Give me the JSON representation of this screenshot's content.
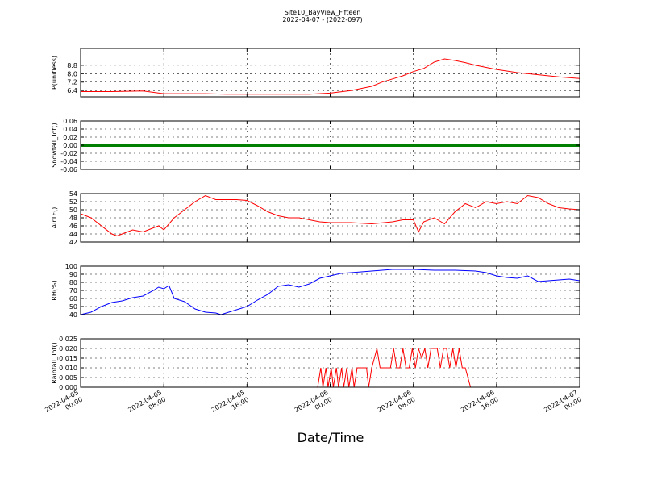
{
  "chart_title": "Site10_BayView_Fifteen",
  "chart_subtitle": "2022-04-07 - (2022-097)",
  "x_axis_label": "Date/Time",
  "chart_data": {
    "type": "line",
    "x_range": [
      "2022-04-05 00:00",
      "2022-04-07 00:00"
    ],
    "x_tick_labels": [
      [
        "2022-04-05",
        "00:00"
      ],
      [
        "2022-04-05",
        "08:00"
      ],
      [
        "2022-04-05",
        "16:00"
      ],
      [
        "2022-04-06",
        "00:00"
      ],
      [
        "2022-04-06",
        "08:00"
      ],
      [
        "2022-04-06",
        "16:00"
      ],
      [
        "2022-04-07",
        "00:00"
      ]
    ],
    "grid": true,
    "panels": [
      {
        "ylabel": "P(unitless)",
        "ylim": [
          5.8,
          10.4
        ],
        "yticks": [
          "6.4",
          "7.2",
          "8.0",
          "8.8"
        ],
        "color": "#ff0000",
        "x_hours": [
          0,
          3,
          6,
          8,
          10,
          12,
          14,
          16,
          18,
          20,
          22,
          24,
          26,
          28,
          29,
          30,
          31,
          32,
          33,
          34,
          35,
          36,
          37,
          38,
          40,
          42,
          44,
          46,
          48
        ],
        "values": [
          6.3,
          6.3,
          6.35,
          6.1,
          6.1,
          6.1,
          6.05,
          6.05,
          6.05,
          6.05,
          6.05,
          6.15,
          6.4,
          6.8,
          7.2,
          7.5,
          7.8,
          8.2,
          8.5,
          9.1,
          9.4,
          9.25,
          9.05,
          8.8,
          8.4,
          8.1,
          7.9,
          7.7,
          7.55
        ]
      },
      {
        "ylabel": "Snowfall_Tot()",
        "ylim": [
          -0.06,
          0.06
        ],
        "yticks": [
          "-0.06",
          "-0.04",
          "-0.02",
          "0.00",
          "0.02",
          "0.04",
          "0.06"
        ],
        "color": "#008000",
        "x_hours": [
          0,
          48
        ],
        "values": [
          0,
          0
        ]
      },
      {
        "ylabel": "AirTF()",
        "ylim": [
          42,
          54
        ],
        "yticks": [
          "42",
          "44",
          "46",
          "48",
          "50",
          "52",
          "54"
        ],
        "color": "#ff0000",
        "x_hours": [
          0,
          1,
          2,
          3,
          3.5,
          4,
          5,
          6,
          7,
          7.5,
          8,
          9,
          10,
          11,
          12,
          13,
          14,
          15,
          16,
          17,
          18,
          19,
          20,
          21,
          22,
          23,
          24,
          26,
          28,
          30,
          31,
          32,
          32.5,
          33,
          34,
          35,
          36,
          37,
          38,
          39,
          40,
          41,
          42,
          43,
          44,
          45,
          46,
          47,
          48
        ],
        "values": [
          49,
          48,
          46,
          44,
          43.5,
          44,
          45,
          44.5,
          45.5,
          46,
          45,
          48,
          50,
          52,
          53.5,
          52.5,
          52.5,
          52.5,
          52.3,
          51,
          49.5,
          48.5,
          48,
          48,
          47.5,
          47,
          46.8,
          46.8,
          46.5,
          47,
          47.5,
          47.5,
          44.5,
          47,
          48,
          46.5,
          49.5,
          51.5,
          50.5,
          52,
          51.5,
          52,
          51.5,
          53.5,
          53,
          51.5,
          50.5,
          50.2,
          50
        ]
      },
      {
        "ylabel": "RH(%)",
        "ylim": [
          40,
          100
        ],
        "yticks": [
          "40",
          "50",
          "60",
          "70",
          "80",
          "90",
          "100"
        ],
        "color": "#0000ff",
        "x_hours": [
          0,
          1,
          2,
          3,
          4,
          5,
          6,
          7,
          7.5,
          8,
          8.5,
          9,
          10,
          11,
          12,
          13,
          13.5,
          14,
          15,
          16,
          17,
          18,
          19,
          20,
          21,
          22,
          23,
          24,
          25,
          26,
          27,
          28,
          29,
          30,
          32,
          34,
          36,
          38,
          39,
          40,
          41,
          42,
          43,
          44,
          45,
          46,
          47,
          48
        ],
        "values": [
          40,
          43,
          50,
          55,
          57,
          61,
          63,
          70,
          74,
          72,
          76,
          60,
          56,
          47,
          43,
          42,
          40,
          42,
          46,
          50,
          58,
          65,
          75,
          77,
          74,
          78,
          85,
          88,
          91,
          92,
          93,
          94,
          95,
          96,
          96,
          95,
          95,
          94,
          92,
          88,
          86,
          85,
          88,
          81,
          82,
          83,
          84,
          82
        ]
      },
      {
        "ylabel": "Rainfall_Tot()",
        "ylim": [
          0,
          0.025
        ],
        "yticks": [
          "0.000",
          "0.005",
          "0.010",
          "0.015",
          "0.020",
          "0.025"
        ],
        "color": "#ff0000",
        "x_hours": [
          0,
          22.8,
          23.1,
          23.3,
          23.6,
          23.8,
          24.1,
          24.3,
          24.6,
          24.8,
          25.1,
          25.3,
          25.6,
          25.8,
          26.1,
          26.3,
          26.6,
          26.8,
          27.5,
          27.7,
          28,
          28.5,
          28.8,
          29.5,
          29.8,
          30.1,
          30.4,
          30.7,
          31,
          31.3,
          31.6,
          31.9,
          32.2,
          32.5,
          32.8,
          33.1,
          33.4,
          33.7,
          34,
          34.3,
          34.6,
          34.9,
          35.2,
          35.5,
          35.8,
          36.1,
          36.4,
          36.7,
          37,
          37.5,
          48
        ],
        "values": [
          0,
          0,
          0.01,
          0,
          0.01,
          0,
          0.01,
          0,
          0.01,
          0,
          0.01,
          0,
          0.01,
          0,
          0.01,
          0,
          0.01,
          0.01,
          0.01,
          0,
          0.01,
          0.02,
          0.01,
          0.01,
          0.01,
          0.02,
          0.01,
          0.01,
          0.02,
          0.01,
          0.01,
          0.02,
          0.01,
          0.02,
          0.015,
          0.02,
          0.01,
          0.02,
          0.02,
          0.02,
          0.01,
          0.02,
          0.02,
          0.01,
          0.02,
          0.01,
          0.02,
          0.01,
          0.01,
          0,
          0
        ]
      }
    ]
  }
}
